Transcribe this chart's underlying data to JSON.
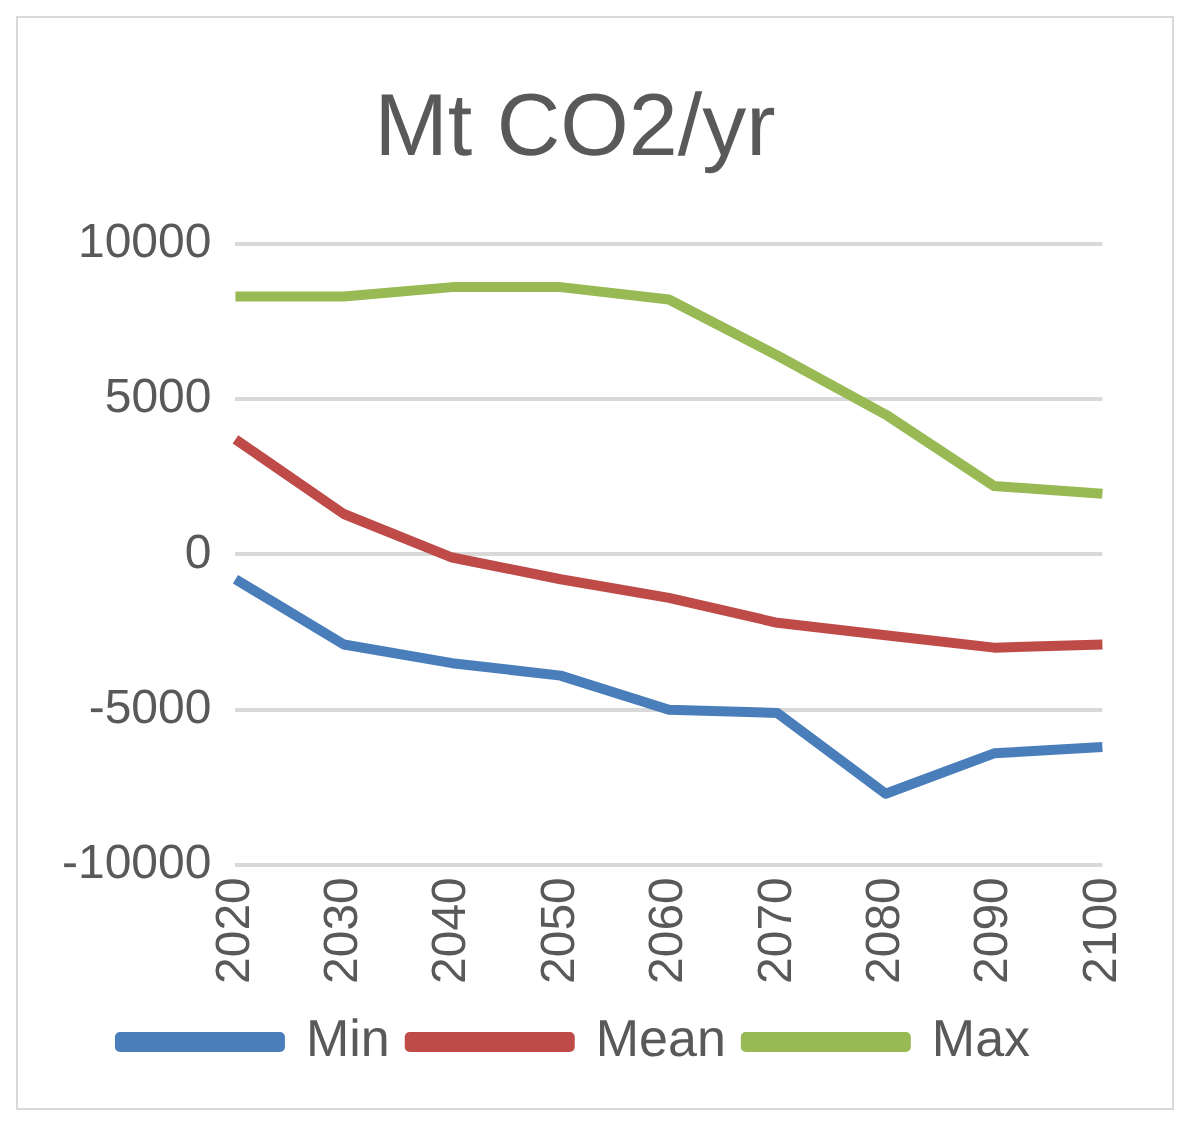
{
  "chart_data": {
    "type": "line",
    "title": "Mt CO2/yr",
    "categories": [
      "2020",
      "2030",
      "2040",
      "2050",
      "2060",
      "2070",
      "2080",
      "2090",
      "2100"
    ],
    "series": [
      {
        "name": "Min",
        "color": "#4a7ebb",
        "values": [
          -800,
          -2900,
          -3500,
          -3900,
          -5000,
          -5100,
          -7700,
          -6400,
          -6200
        ]
      },
      {
        "name": "Mean",
        "color": "#be4b48",
        "values": [
          3700,
          1300,
          -100,
          -800,
          -1400,
          -2200,
          -2600,
          -3000,
          -2900
        ]
      },
      {
        "name": "Max",
        "color": "#98b954",
        "values": [
          8300,
          8300,
          8600,
          8600,
          8200,
          6400,
          4500,
          2200,
          1950
        ]
      }
    ],
    "ylim": [
      -10000,
      10000
    ],
    "yticks": [
      -10000,
      -5000,
      0,
      5000,
      10000
    ],
    "grid": "y",
    "legend": "bottom",
    "marker": "none",
    "line_style": "solid"
  }
}
